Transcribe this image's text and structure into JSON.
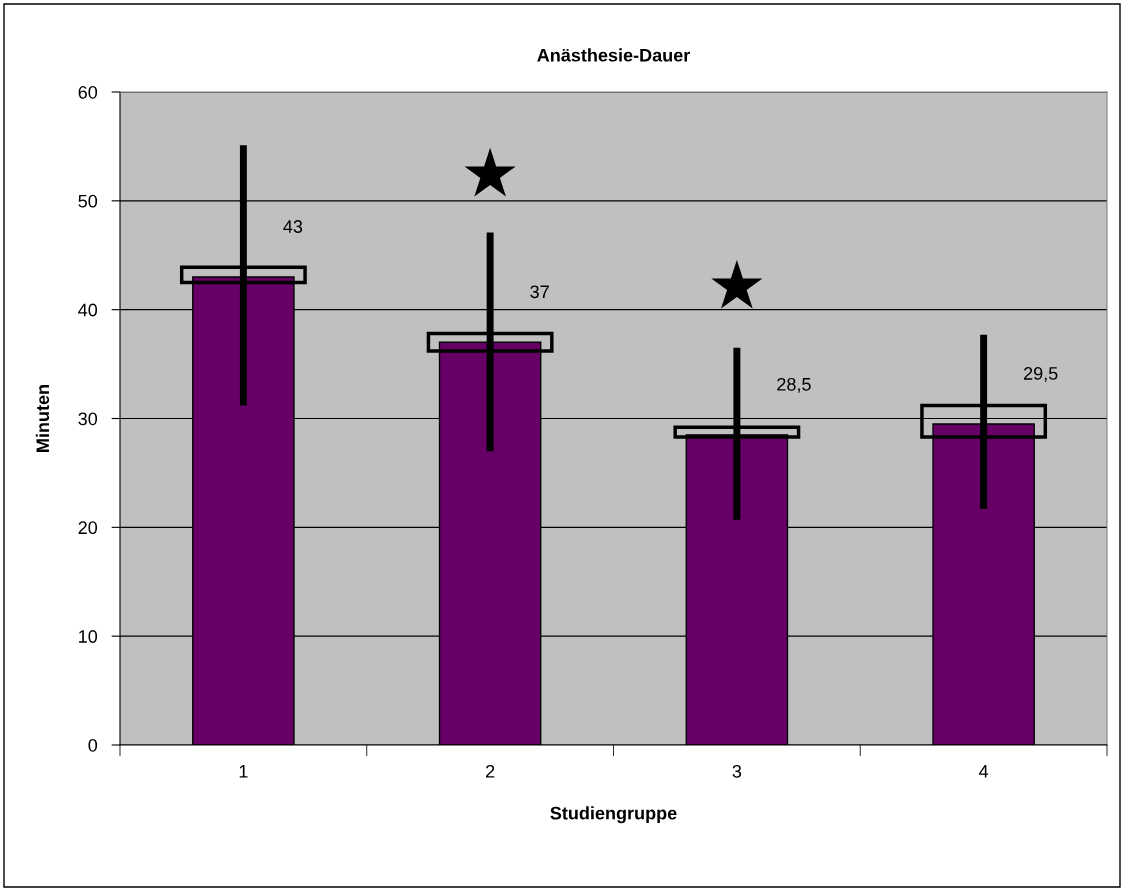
{
  "chart_data": {
    "type": "bar",
    "title": "Anästhesie-Dauer",
    "xlabel": "Studiengruppe",
    "ylabel": "Minuten",
    "categories": [
      "1",
      "2",
      "3",
      "4"
    ],
    "series": [
      {
        "color": "#660066",
        "values": [
          43,
          37,
          28.5,
          29.5
        ],
        "value_labels": [
          "43",
          "37",
          "28,5",
          "29,5"
        ],
        "errors": [
          [
            31.2,
            55.1
          ],
          [
            27.0,
            47.1
          ],
          [
            20.7,
            36.5
          ],
          [
            21.7,
            37.7
          ]
        ]
      },
      {
        "color": "#000000",
        "base": [
          42.5,
          36.2,
          28.3,
          28.3
        ],
        "values": [
          1.4,
          1.6,
          0.9,
          2.9
        ]
      },
      {
        "type": "scatter",
        "color": "#000000",
        "marker": "star",
        "x": [
          "2",
          "3"
        ],
        "values": [
          52.4,
          42.1
        ]
      }
    ],
    "ylim": [
      0,
      60
    ],
    "yticks": [
      0,
      10,
      20,
      30,
      40,
      50,
      60
    ],
    "grid": "y",
    "legend": false
  }
}
